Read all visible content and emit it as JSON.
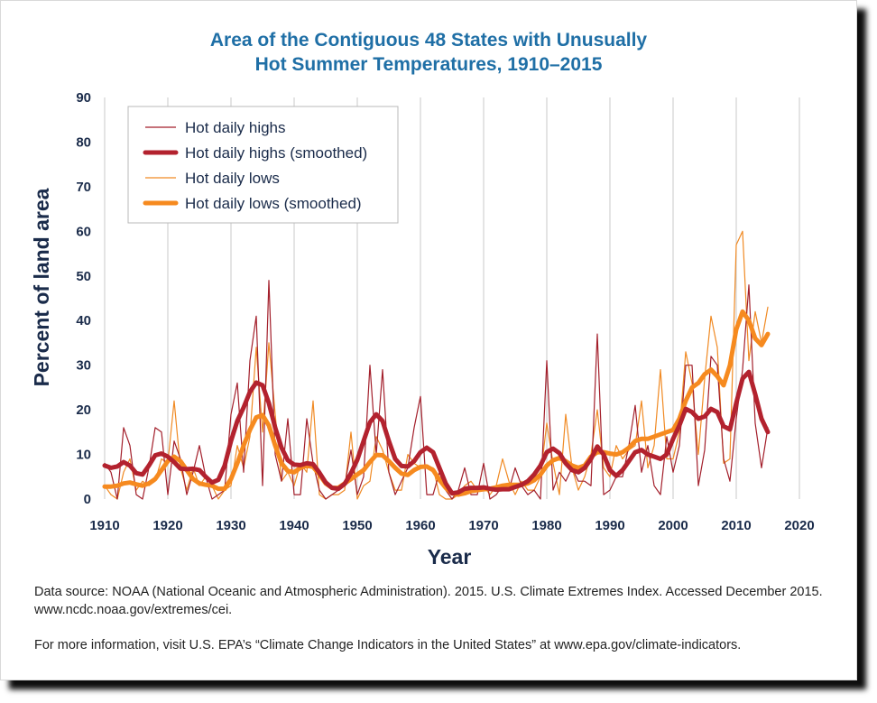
{
  "chart_data": {
    "type": "line",
    "title": "Area of the Contiguous 48 States with Unusually",
    "subtitle": "Hot Summer Temperatures, 1910–2015",
    "xlabel": "Year",
    "ylabel": "Percent of land area",
    "xlim": [
      1910,
      2020
    ],
    "ylim": [
      0,
      90
    ],
    "xticks": [
      "1910",
      "1920",
      "1930",
      "1940",
      "1950",
      "1960",
      "1970",
      "1980",
      "1990",
      "2000",
      "2010",
      "2020"
    ],
    "yticks": [
      "0",
      "10",
      "20",
      "30",
      "40",
      "50",
      "60",
      "70",
      "80",
      "90"
    ],
    "grid": "vertical",
    "legend_position": "top-left",
    "x": [
      1910,
      1911,
      1912,
      1913,
      1914,
      1915,
      1916,
      1917,
      1918,
      1919,
      1920,
      1921,
      1922,
      1923,
      1924,
      1925,
      1926,
      1927,
      1928,
      1929,
      1930,
      1931,
      1932,
      1933,
      1934,
      1935,
      1936,
      1937,
      1938,
      1939,
      1940,
      1941,
      1942,
      1943,
      1944,
      1945,
      1946,
      1947,
      1948,
      1949,
      1950,
      1951,
      1952,
      1953,
      1954,
      1955,
      1956,
      1957,
      1958,
      1959,
      1960,
      1961,
      1962,
      1963,
      1964,
      1965,
      1966,
      1967,
      1968,
      1969,
      1970,
      1971,
      1972,
      1973,
      1974,
      1975,
      1976,
      1977,
      1978,
      1979,
      1980,
      1981,
      1982,
      1983,
      1984,
      1985,
      1986,
      1987,
      1988,
      1989,
      1990,
      1991,
      1992,
      1993,
      1994,
      1995,
      1996,
      1997,
      1998,
      1999,
      2000,
      2001,
      2002,
      2003,
      2004,
      2005,
      2006,
      2007,
      2008,
      2009,
      2010,
      2011,
      2012,
      2013,
      2014,
      2015
    ],
    "series": [
      {
        "name": "Hot daily highs",
        "color": "#a31f2b",
        "stroke_style": "thin",
        "values": [
          8,
          6,
          0,
          16,
          12,
          1,
          0,
          7,
          16,
          15,
          1,
          13,
          9,
          1,
          6,
          12,
          5,
          0,
          1,
          2,
          19,
          26,
          6,
          31,
          41,
          3,
          49,
          10,
          4,
          18,
          1,
          1,
          18,
          8,
          2,
          0,
          1,
          2,
          3,
          11,
          1,
          5,
          30,
          10,
          29,
          6,
          1,
          4,
          7,
          16,
          23,
          1,
          1,
          6,
          2,
          0,
          2,
          7,
          1,
          1,
          8,
          0,
          1,
          3,
          2,
          7,
          3,
          1,
          2,
          0,
          31,
          2,
          6,
          4,
          7,
          4,
          4,
          3,
          37,
          1,
          2,
          5,
          5,
          12,
          21,
          6,
          12,
          3,
          1,
          14,
          6,
          12,
          30,
          30,
          3,
          11,
          32,
          30,
          9,
          4,
          18,
          29,
          48,
          17,
          7,
          16
        ]
      },
      {
        "name": "Hot daily highs (smoothed)",
        "color": "#b3222e",
        "stroke_style": "thick",
        "values": [
          7.5,
          7,
          7.3,
          8.3,
          7.5,
          5.8,
          5.5,
          7.5,
          9.8,
          10.2,
          9.5,
          8.3,
          6.8,
          6.7,
          6.8,
          6.5,
          5,
          3.7,
          4.3,
          7.5,
          13,
          17.5,
          20.5,
          24,
          26.1,
          25.5,
          21.5,
          16,
          11.5,
          8.7,
          7.7,
          7.6,
          8,
          7.8,
          5.9,
          3.7,
          2.5,
          2.3,
          3.4,
          5.8,
          8.8,
          13,
          17.2,
          19,
          17.5,
          13,
          9,
          7.4,
          7.3,
          8.5,
          10.5,
          11.5,
          10.5,
          7,
          3.5,
          1.3,
          1.5,
          2.3,
          2.5,
          2.5,
          2.6,
          2.3,
          2.1,
          2.2,
          2.2,
          2.7,
          3.2,
          4,
          5.5,
          7.5,
          10.5,
          11.3,
          10.3,
          8,
          6.5,
          6,
          7,
          9,
          11.8,
          10,
          6.5,
          5.2,
          6.5,
          8.5,
          10.5,
          11,
          10,
          9.5,
          9,
          10,
          13.5,
          16.5,
          20.2,
          19.5,
          18,
          18.5,
          20.2,
          19.5,
          16.3,
          15.6,
          21.5,
          27,
          28.5,
          23.5,
          18,
          15
        ]
      },
      {
        "name": "Hot daily lows",
        "color": "#f08a24",
        "stroke_style": "thin",
        "values": [
          3,
          1,
          0,
          6,
          9,
          2,
          4,
          3,
          4,
          9,
          8,
          22,
          7,
          2,
          7,
          3,
          5,
          3,
          0,
          2,
          3,
          12,
          7,
          14,
          34,
          15,
          35,
          19,
          4,
          6,
          3,
          8,
          6,
          22,
          1,
          0,
          1,
          1,
          2,
          15,
          0,
          3,
          4,
          14,
          11,
          6,
          2,
          2,
          10,
          8,
          7,
          7,
          7,
          1,
          0,
          0,
          1,
          3,
          4,
          2,
          3,
          1,
          3,
          9,
          4,
          1,
          4,
          2,
          2,
          5,
          17,
          8,
          1,
          19,
          7,
          2,
          5,
          10,
          20,
          7,
          5,
          12,
          9,
          11,
          12,
          22,
          7,
          12,
          29,
          9,
          9,
          15,
          33,
          26,
          10,
          27,
          41,
          34,
          8,
          9,
          57,
          60,
          31,
          42,
          35,
          43
        ]
      },
      {
        "name": "Hot daily lows (smoothed)",
        "color": "#f68a1f",
        "stroke_style": "thick",
        "values": [
          2.8,
          2.8,
          3,
          3.5,
          3.7,
          3.3,
          3,
          3.5,
          4.5,
          6.5,
          8.5,
          9.5,
          8.5,
          6.5,
          4.5,
          3.5,
          3.2,
          3,
          2.3,
          2.3,
          4.5,
          8,
          12,
          15.5,
          18.3,
          18.8,
          16.5,
          12,
          8,
          6.3,
          6,
          7,
          7.5,
          7.2,
          5.5,
          3.5,
          2.5,
          2.5,
          3.5,
          4.5,
          5.5,
          6.5,
          8.3,
          9.9,
          9.8,
          8.5,
          7,
          5.7,
          5.4,
          6.5,
          7.2,
          7.3,
          6.5,
          4.3,
          2.5,
          1.3,
          1,
          1.3,
          1.8,
          2,
          2.2,
          2.3,
          2.6,
          3,
          3.2,
          3.2,
          3.2,
          3.5,
          4.2,
          5.5,
          7.5,
          8.7,
          9.2,
          8.5,
          7.5,
          7,
          7.5,
          9.5,
          10.5,
          10.5,
          10.2,
          10,
          10.5,
          11.5,
          13,
          13.5,
          13.5,
          14,
          14.5,
          15,
          15.5,
          18,
          22,
          25,
          26,
          28,
          29,
          27.5,
          25.5,
          30,
          38,
          42,
          40,
          36,
          34.5,
          37
        ]
      }
    ]
  },
  "notes": {
    "source": "Data source: NOAA (National Oceanic and Atmospheric Administration). 2015. U.S. Climate Extremes Index. Accessed December 2015. www.ncdc.noaa.gov/extremes/cei.",
    "more_info": "For more information, visit U.S. EPA’s “Climate Change Indicators in the United States” at www.epa.gov/climate-indicators."
  },
  "colors": {
    "title": "#1f6fa6",
    "axis_text": "#1a2b4a",
    "grid": "#c8c8c8",
    "shadow": "#000000"
  }
}
